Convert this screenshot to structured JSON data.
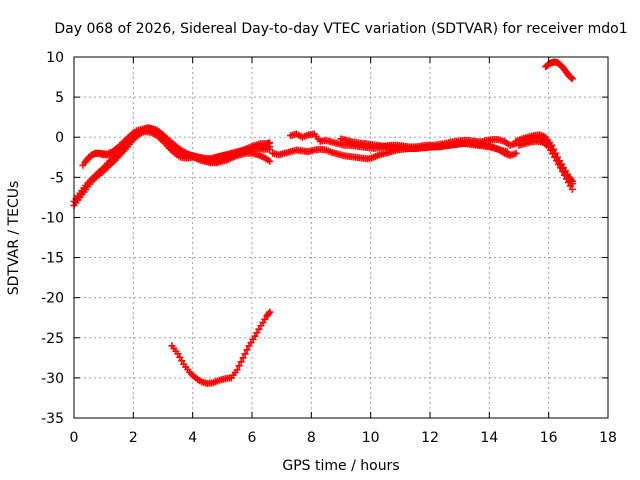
{
  "chart_data": {
    "type": "scatter",
    "title": "Day 068 of 2026, Sidereal Day-to-day VTEC variation (SDTVAR) for receiver mdo1",
    "xlabel": "GPS time / hours",
    "ylabel": "SDTVAR / TECUs",
    "xlim": [
      0,
      18
    ],
    "ylim": [
      -35,
      10
    ],
    "xticks": [
      0,
      2,
      4,
      6,
      8,
      10,
      12,
      14,
      16,
      18
    ],
    "yticks": [
      -35,
      -30,
      -25,
      -20,
      -15,
      -10,
      -5,
      0,
      5,
      10
    ],
    "grid": true,
    "marker": "+",
    "color": "#ff0000",
    "series": [
      {
        "name": "main-band-1",
        "x": [
          0.0,
          0.2,
          0.4,
          0.6,
          0.8,
          1.0,
          1.2,
          1.4,
          1.6,
          1.8,
          2.0,
          2.2,
          2.4,
          2.6,
          2.8,
          3.0,
          3.2,
          3.4,
          3.6,
          3.8,
          4.0,
          4.2,
          4.4,
          4.6,
          4.8,
          5.0,
          5.2,
          5.4,
          5.6,
          5.8,
          6.0,
          6.2,
          6.4,
          6.6
        ],
        "y": [
          -8.5,
          -7.5,
          -6.5,
          -5.5,
          -4.8,
          -4.2,
          -3.5,
          -2.8,
          -2.0,
          -1.2,
          -0.3,
          0.4,
          0.8,
          0.9,
          0.6,
          0.0,
          -0.8,
          -1.5,
          -2.0,
          -2.2,
          -2.3,
          -2.5,
          -2.6,
          -2.7,
          -2.5,
          -2.3,
          -2.2,
          -2.0,
          -1.8,
          -1.6,
          -1.4,
          -1.3,
          -1.3,
          -1.2
        ]
      },
      {
        "name": "main-band-2",
        "x": [
          0.0,
          0.2,
          0.4,
          0.6,
          0.8,
          1.0,
          1.2,
          1.4,
          1.6,
          1.8,
          2.0,
          2.2,
          2.4,
          2.6,
          2.8,
          3.0,
          3.2,
          3.4,
          3.6,
          3.8,
          4.0,
          4.2,
          4.4,
          4.6,
          4.8,
          5.0,
          5.2,
          5.4,
          5.6,
          5.8,
          6.0,
          6.2,
          6.4,
          6.6
        ],
        "y": [
          -8.0,
          -7.0,
          -6.0,
          -5.2,
          -4.5,
          -3.8,
          -3.0,
          -2.4,
          -1.6,
          -0.8,
          0.0,
          0.6,
          1.0,
          1.1,
          0.9,
          0.3,
          -0.4,
          -1.0,
          -1.6,
          -2.0,
          -2.4,
          -2.8,
          -3.0,
          -3.1,
          -3.2,
          -3.0,
          -2.8,
          -2.4,
          -2.0,
          -1.6,
          -1.4,
          -1.4,
          -1.5,
          -1.5
        ]
      },
      {
        "name": "main-band-3",
        "x": [
          0.3,
          0.5,
          0.7,
          0.9,
          1.1,
          1.3,
          1.5,
          1.7,
          1.9,
          2.1,
          2.3,
          2.5,
          2.7,
          2.9,
          3.1,
          3.3,
          3.5,
          3.7,
          3.9,
          4.1,
          4.3,
          4.5,
          4.7,
          4.9,
          5.1,
          5.3,
          5.5,
          5.7,
          5.9,
          6.1,
          6.3,
          6.5,
          6.6
        ],
        "y": [
          -3.5,
          -2.5,
          -2.0,
          -2.0,
          -2.1,
          -1.8,
          -1.2,
          -0.5,
          0.2,
          0.8,
          1.0,
          1.2,
          0.9,
          0.3,
          -0.3,
          -1.0,
          -1.6,
          -2.0,
          -2.2,
          -2.4,
          -2.6,
          -2.8,
          -2.6,
          -2.4,
          -2.2,
          -2.0,
          -1.8,
          -1.6,
          -1.3,
          -1.0,
          -0.8,
          -0.8,
          -0.7
        ]
      },
      {
        "name": "main-band-4",
        "x": [
          0.4,
          0.6,
          0.8,
          1.0,
          1.2,
          1.4,
          1.6,
          1.8,
          2.0,
          2.2,
          2.4,
          2.6,
          2.8,
          3.0,
          3.2,
          3.4,
          3.6,
          3.8,
          4.0,
          4.2,
          4.4,
          4.6,
          4.8,
          5.0,
          5.2,
          5.4,
          5.6,
          5.8,
          6.0,
          6.2,
          6.4,
          6.6
        ],
        "y": [
          -3.0,
          -2.2,
          -2.0,
          -2.2,
          -2.2,
          -2.0,
          -1.4,
          -0.6,
          0.0,
          0.5,
          0.7,
          0.6,
          0.2,
          -0.5,
          -1.3,
          -2.0,
          -2.5,
          -2.6,
          -2.5,
          -2.6,
          -2.9,
          -3.2,
          -3.0,
          -2.8,
          -2.6,
          -2.4,
          -2.2,
          -2.0,
          -2.0,
          -2.2,
          -2.5,
          -3.0
        ]
      },
      {
        "name": "mid-band-1",
        "x": [
          6.7,
          6.9,
          7.1,
          7.3,
          7.5,
          7.7,
          7.9,
          8.1,
          8.3,
          8.5,
          8.7,
          8.9,
          9.1,
          9.3,
          9.5,
          9.7,
          9.9,
          10.1,
          10.3,
          10.5,
          10.7,
          10.9,
          11.1,
          11.3,
          11.5,
          11.7,
          11.9,
          12.1,
          12.3,
          12.5,
          12.7,
          12.9,
          13.1,
          13.3,
          13.5,
          13.7,
          13.9,
          14.1,
          14.3,
          14.5,
          14.7,
          14.9
        ],
        "y": [
          -2.0,
          -2.2,
          -2.0,
          -1.8,
          -1.6,
          -1.7,
          -1.8,
          -1.6,
          -1.5,
          -1.6,
          -1.9,
          -2.1,
          -2.3,
          -2.4,
          -2.5,
          -2.6,
          -2.7,
          -2.5,
          -2.2,
          -2.0,
          -1.8,
          -1.6,
          -1.5,
          -1.4,
          -1.4,
          -1.3,
          -1.3,
          -1.2,
          -1.2,
          -1.1,
          -1.0,
          -0.9,
          -0.8,
          -0.7,
          -0.8,
          -0.9,
          -1.0,
          -1.2,
          -1.5,
          -2.0,
          -2.3,
          -2.0
        ]
      },
      {
        "name": "mid-band-2",
        "x": [
          7.3,
          7.5,
          7.7,
          7.9,
          8.1,
          8.3,
          8.5,
          8.7,
          8.9,
          9.1,
          9.3,
          9.5,
          9.7,
          9.9,
          10.1,
          10.3,
          10.5,
          10.7,
          10.9,
          11.1,
          11.3,
          11.5,
          11.7,
          11.9,
          12.1,
          12.3,
          12.5,
          12.7,
          12.9,
          13.1,
          13.3,
          13.5,
          13.7,
          13.9,
          14.1,
          14.3,
          14.5,
          14.7,
          14.9
        ],
        "y": [
          0.2,
          0.4,
          0.0,
          0.3,
          0.4,
          -0.5,
          -0.4,
          -0.6,
          -0.8,
          -1.0,
          -1.0,
          -1.1,
          -1.2,
          -1.3,
          -1.4,
          -1.3,
          -1.1,
          -1.0,
          -1.0,
          -1.1,
          -1.2,
          -1.2,
          -1.1,
          -1.0,
          -1.0,
          -0.9,
          -0.8,
          -0.6,
          -0.5,
          -0.4,
          -0.4,
          -0.5,
          -0.6,
          -0.4,
          -0.3,
          -0.3,
          -0.5,
          -1.0,
          -0.8
        ]
      },
      {
        "name": "mid-band-3",
        "x": [
          9.0,
          9.2,
          9.4,
          9.6,
          9.8,
          10.0,
          10.2,
          10.4,
          10.6,
          10.8,
          11.0,
          11.2,
          11.4,
          11.6,
          11.8,
          12.0,
          12.2,
          12.4,
          12.6,
          12.8,
          13.0,
          13.2,
          13.4,
          13.6,
          13.8,
          14.0,
          14.2,
          14.4,
          14.6
        ],
        "y": [
          -0.2,
          -0.4,
          -0.6,
          -0.7,
          -0.8,
          -0.9,
          -1.0,
          -1.1,
          -1.2,
          -1.3,
          -1.3,
          -1.4,
          -1.4,
          -1.4,
          -1.3,
          -1.2,
          -1.2,
          -1.1,
          -1.0,
          -0.9,
          -0.8,
          -0.8,
          -0.9,
          -1.0,
          -1.1,
          -1.2,
          -1.4,
          -1.6,
          -1.8
        ]
      },
      {
        "name": "late-band-1",
        "x": [
          14.9,
          15.1,
          15.3,
          15.5,
          15.7,
          15.9,
          16.1,
          16.3,
          16.5,
          16.7,
          16.8
        ],
        "y": [
          -0.5,
          -0.2,
          0.0,
          0.2,
          0.3,
          0.0,
          -1.0,
          -2.5,
          -3.8,
          -5.0,
          -5.5
        ]
      },
      {
        "name": "late-band-2",
        "x": [
          15.0,
          15.2,
          15.4,
          15.6,
          15.8,
          16.0,
          16.2,
          16.4,
          16.6,
          16.8
        ],
        "y": [
          -1.0,
          -0.8,
          -0.6,
          -0.5,
          -0.6,
          -1.2,
          -2.5,
          -3.8,
          -5.2,
          -6.5
        ]
      },
      {
        "name": "late-band-3",
        "x": [
          15.2,
          15.4,
          15.6,
          15.8,
          16.0,
          16.2,
          16.4,
          16.6,
          16.8
        ],
        "y": [
          -0.3,
          -0.2,
          -0.1,
          -0.2,
          -0.8,
          -2.0,
          -3.5,
          -4.8,
          -5.8
        ]
      },
      {
        "name": "high-arc",
        "x": [
          15.9,
          16.0,
          16.1,
          16.2,
          16.3,
          16.4,
          16.5,
          16.6,
          16.7,
          16.8
        ],
        "y": [
          8.8,
          9.1,
          9.3,
          9.4,
          9.3,
          9.0,
          8.6,
          8.1,
          7.6,
          7.3
        ]
      },
      {
        "name": "low-arc",
        "x": [
          3.3,
          3.5,
          3.7,
          3.9,
          4.1,
          4.3,
          4.5,
          4.7,
          4.9,
          5.1,
          5.3,
          5.5,
          5.7,
          5.9,
          6.1,
          6.3,
          6.5,
          6.6
        ],
        "y": [
          -26.0,
          -27.0,
          -28.3,
          -29.3,
          -30.0,
          -30.5,
          -30.7,
          -30.6,
          -30.3,
          -30.1,
          -30.0,
          -29.0,
          -27.5,
          -26.0,
          -24.8,
          -23.5,
          -22.3,
          -21.8
        ]
      }
    ]
  }
}
